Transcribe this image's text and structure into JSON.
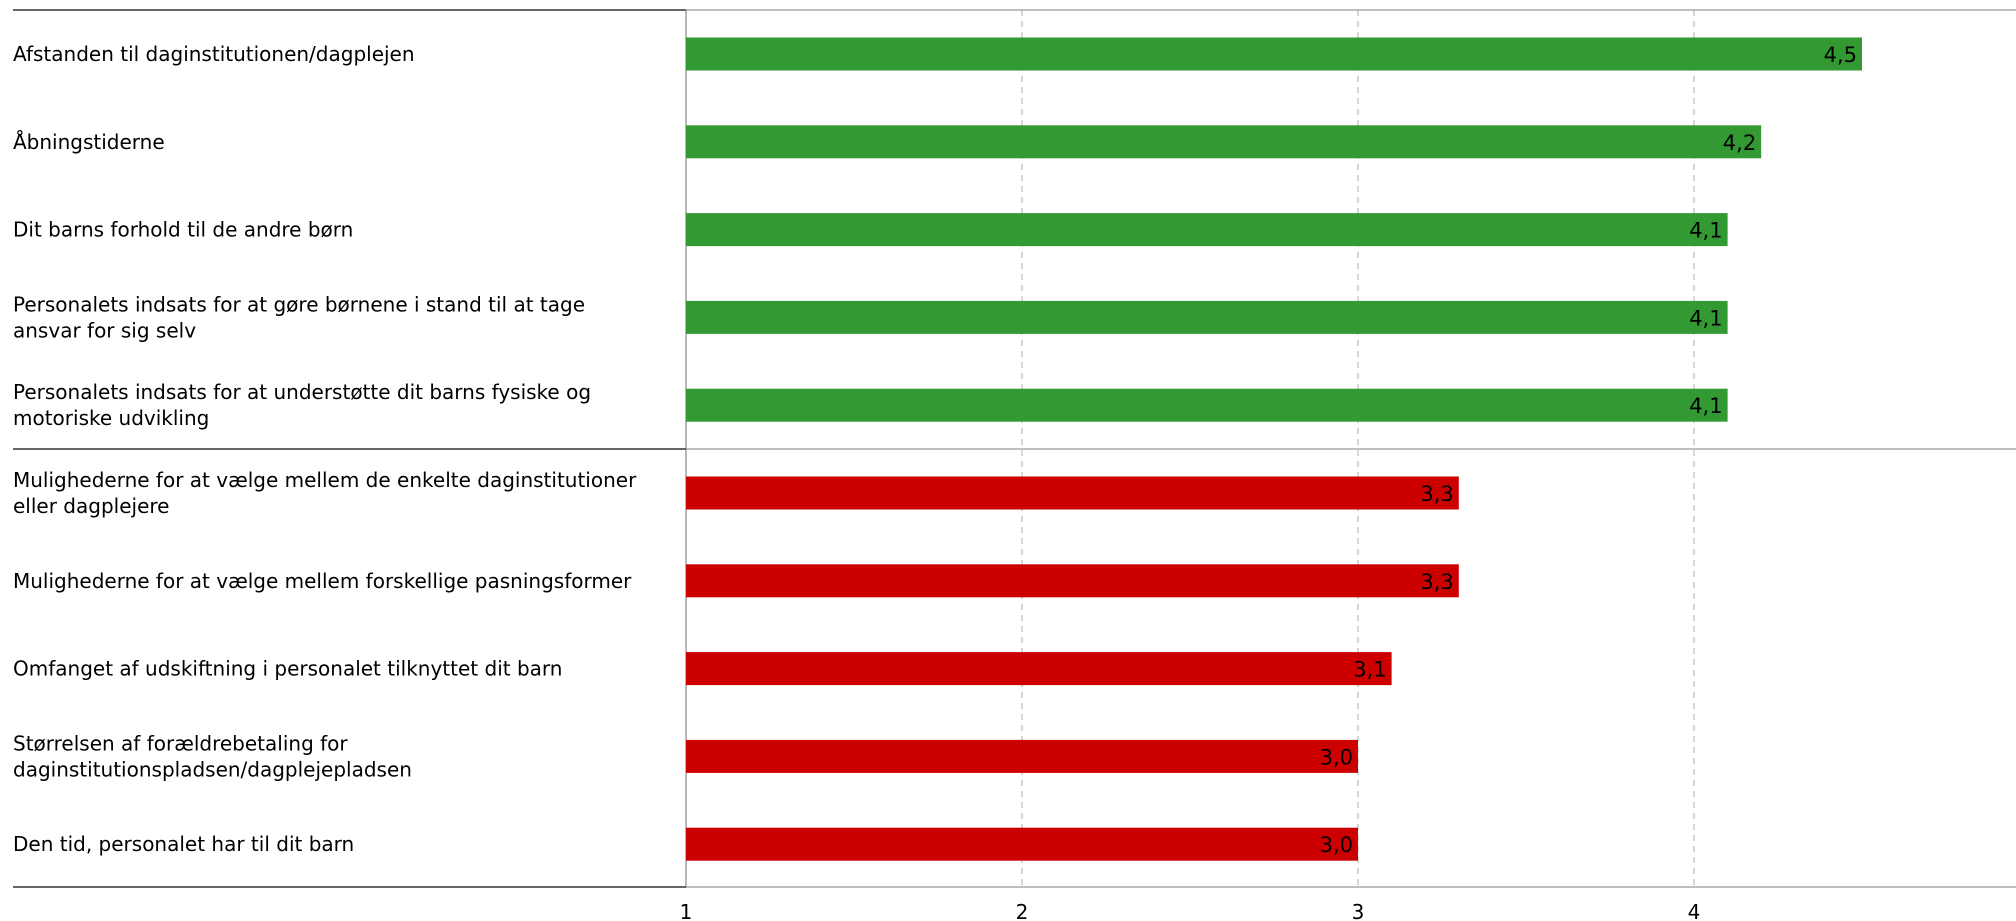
{
  "chart_data": {
    "type": "bar",
    "orientation": "horizontal",
    "title": "",
    "xlabel": "",
    "ylabel": "",
    "xlim": [
      1,
      5
    ],
    "xticks": [
      "1",
      "2",
      "3",
      "4"
    ],
    "grid": "vertical dashed",
    "legend": "none",
    "colors": {
      "top_group": "#339933",
      "bottom_group": "#cc0000"
    },
    "categories": [
      [
        "Afstanden til daginstitutionen/dagplejen"
      ],
      [
        "Åbningstiderne"
      ],
      [
        "Dit barns forhold til de andre børn"
      ],
      [
        "Personalets indsats for at gøre børnene i stand til at tage",
        "ansvar for sig selv"
      ],
      [
        "Personalets indsats for at understøtte dit barns fysiske og",
        "motoriske udvikling"
      ],
      [
        "Mulighederne for at vælge mellem de enkelte daginstitutioner",
        "eller dagplejere"
      ],
      [
        "Mulighederne for at vælge mellem forskellige pasningsformer"
      ],
      [
        "Omfanget af udskiftning i personalet tilknyttet dit barn"
      ],
      [
        "Størrelsen af forældrebetaling for",
        "daginstitutionspladsen/dagplejepladsen"
      ],
      [
        "Den tid, personalet har til dit barn"
      ]
    ],
    "values": [
      4.5,
      4.2,
      4.1,
      4.1,
      4.1,
      3.3,
      3.3,
      3.1,
      3.0,
      3.0
    ],
    "value_labels": [
      "4,5",
      "4,2",
      "4,1",
      "4,1",
      "4,1",
      "3,3",
      "3,3",
      "3,1",
      "3,0",
      "3,0"
    ],
    "groups": [
      "top_group",
      "top_group",
      "top_group",
      "top_group",
      "top_group",
      "bottom_group",
      "bottom_group",
      "bottom_group",
      "bottom_group",
      "bottom_group"
    ]
  }
}
